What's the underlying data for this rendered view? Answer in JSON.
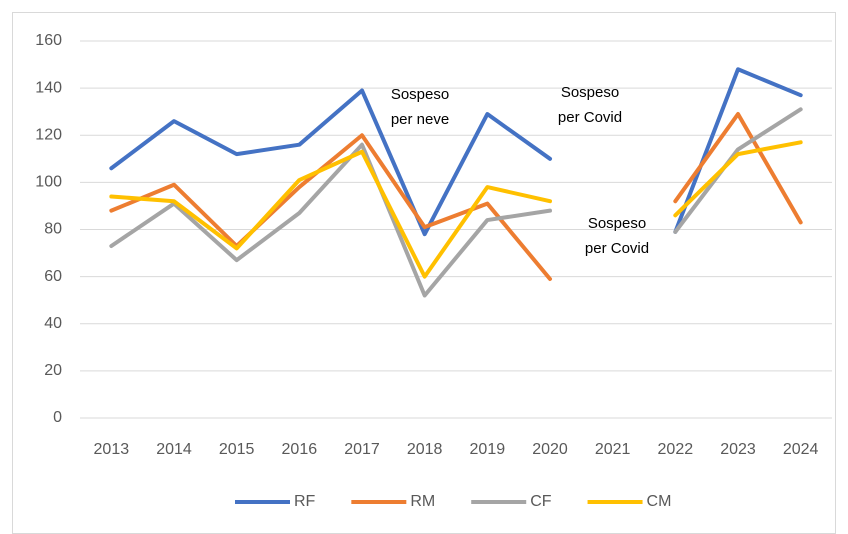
{
  "chart_data": {
    "type": "line",
    "categories": [
      "2013",
      "2014",
      "2015",
      "2016",
      "2017",
      "2018",
      "2019",
      "2020",
      "2021",
      "2022",
      "2023",
      "2024"
    ],
    "series": [
      {
        "name": "RF",
        "color": "#4472c4",
        "values": [
          106,
          126,
          112,
          116,
          139,
          78,
          129,
          110,
          null,
          79,
          148,
          137
        ]
      },
      {
        "name": "RM",
        "color": "#ed7d31",
        "values": [
          88,
          99,
          73,
          98,
          120,
          81,
          91,
          59,
          null,
          92,
          129,
          83
        ]
      },
      {
        "name": "CF",
        "color": "#a5a5a5",
        "values": [
          73,
          91,
          67,
          87,
          116,
          52,
          84,
          88,
          null,
          79,
          114,
          131
        ]
      },
      {
        "name": "CM",
        "color": "#ffc000",
        "values": [
          94,
          92,
          72,
          101,
          113,
          60,
          98,
          92,
          null,
          86,
          112,
          117
        ]
      }
    ],
    "ylim": [
      0,
      160
    ],
    "yticks": [
      0,
      20,
      40,
      60,
      80,
      100,
      120,
      140,
      160
    ],
    "grid": true,
    "legend": "bottom",
    "annotations": [
      {
        "lines": [
          "Sospeso",
          "per neve"
        ]
      },
      {
        "lines": [
          "Sospeso",
          "per Covid"
        ]
      },
      {
        "lines": [
          "Sospeso",
          "per Covid"
        ]
      }
    ]
  }
}
